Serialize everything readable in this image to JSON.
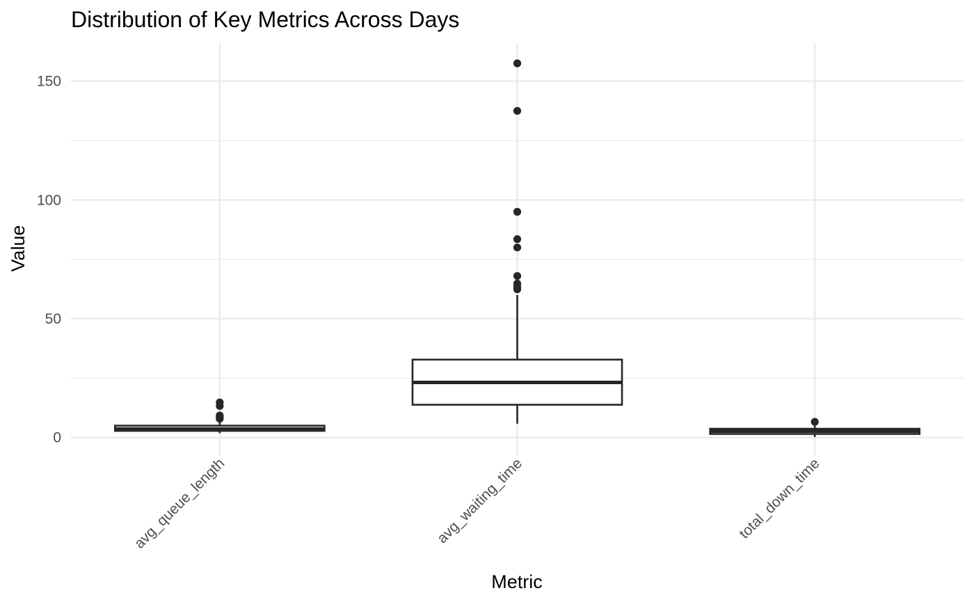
{
  "chart_data": {
    "type": "boxplot",
    "title": "Distribution of Key Metrics Across Days",
    "xlabel": "Metric",
    "ylabel": "Value",
    "ylim": [
      -8,
      166
    ],
    "y_ticks": [
      0,
      50,
      100,
      150
    ],
    "y_minor_ticks": [
      25,
      75,
      125
    ],
    "grid": true,
    "categories": [
      "avg_queue_length",
      "avg_waiting_time",
      "total_down_time"
    ],
    "boxes": [
      {
        "category": "avg_queue_length",
        "whisker_low": 1.8,
        "q1": 2.8,
        "median": 3.6,
        "q3": 5.0,
        "whisker_high": 6.6,
        "outliers": [
          7.9,
          8.6,
          9.3,
          13.3,
          14.8
        ]
      },
      {
        "category": "avg_waiting_time",
        "whisker_low": 5.8,
        "q1": 13.8,
        "median": 23.2,
        "q3": 32.8,
        "whisker_high": 60.0,
        "outliers": [
          62.4,
          63.5,
          64.8,
          68.0,
          80.0,
          83.5,
          95.0,
          137.5,
          157.5
        ]
      },
      {
        "category": "total_down_time",
        "whisker_low": 0.2,
        "q1": 1.5,
        "median": 2.7,
        "q3": 3.7,
        "whisker_high": 5.8,
        "outliers": [
          6.6
        ]
      }
    ]
  }
}
